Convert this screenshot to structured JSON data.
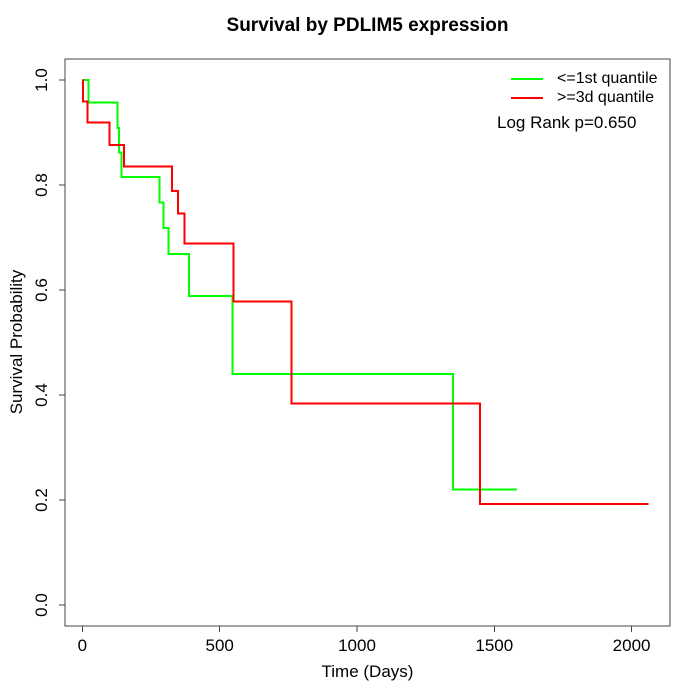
{
  "title": "Survival by PDLIM5 expression",
  "axes": {
    "xlabel": "Time (Days)",
    "ylabel": "Survival Probability",
    "x_ticks": [
      0,
      500,
      1000,
      1500,
      2000
    ],
    "y_ticks": [
      1.0,
      0.8,
      0.6,
      0.4,
      0.2,
      0.0
    ]
  },
  "legend": {
    "entries": [
      {
        "label": "<=1st quantile",
        "color": "#00ff00"
      },
      {
        "label": ">=3d quantile",
        "color": "#ff0000"
      }
    ],
    "annotation": "Log Rank p=0.650"
  },
  "chart_data": {
    "type": "line",
    "subtype": "kaplan-meier-step",
    "title": "Survival by PDLIM5 expression",
    "xlabel": "Time (Days)",
    "ylabel": "Survival Probability",
    "xlim": [
      0,
      2070
    ],
    "ylim": [
      0.0,
      1.0
    ],
    "grid": false,
    "legend_position": "top-right",
    "annotation": "Log Rank p=0.650",
    "line_width": 2,
    "x_ticks": [
      0,
      500,
      1000,
      1500,
      2000
    ],
    "y_ticks": [
      1.0,
      0.8,
      0.6,
      0.4,
      0.2,
      0.0
    ],
    "series": [
      {
        "name": "<=1st quantile",
        "id": "le-1st-quantile",
        "color": "#00ff00",
        "steps": [
          [
            0,
            1.0
          ],
          [
            23,
            0.957
          ],
          [
            127,
            0.909
          ],
          [
            134,
            0.862
          ],
          [
            143,
            0.815
          ],
          [
            280,
            0.767
          ],
          [
            295,
            0.718
          ],
          [
            313,
            0.669
          ],
          [
            388,
            0.589
          ],
          [
            546,
            0.44
          ],
          [
            1350,
            0.22
          ]
        ],
        "end_time": 1582
      },
      {
        "name": ">=3d quantile",
        "id": "ge-3d-quantile",
        "color": "#ff0000",
        "steps": [
          [
            0,
            1.0
          ],
          [
            2,
            0.959
          ],
          [
            19,
            0.919
          ],
          [
            98,
            0.876
          ],
          [
            152,
            0.835
          ],
          [
            327,
            0.789
          ],
          [
            349,
            0.746
          ],
          [
            371,
            0.689
          ],
          [
            550,
            0.578
          ],
          [
            762,
            0.384
          ],
          [
            1448,
            0.192
          ]
        ],
        "end_time": 2061
      }
    ]
  }
}
